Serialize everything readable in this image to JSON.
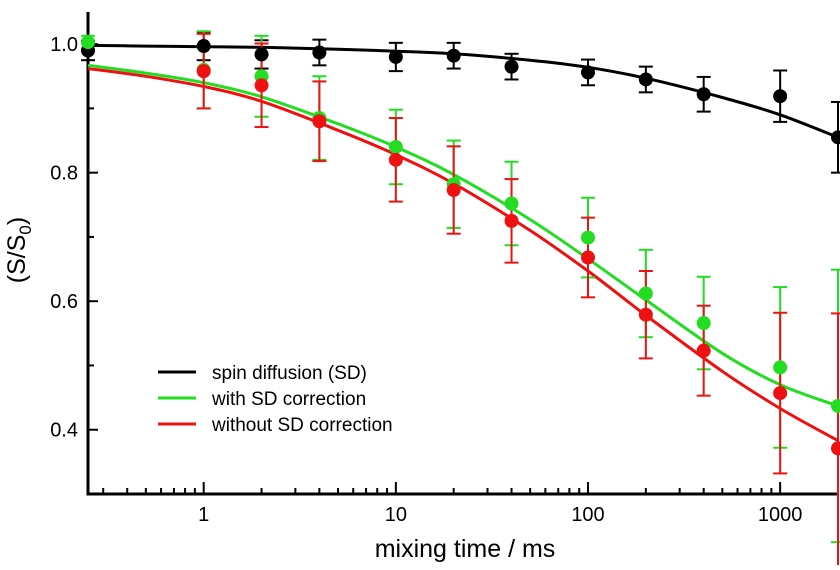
{
  "chart_data": {
    "type": "scatter",
    "title": "",
    "xlabel": "mixing time / ms",
    "ylabel": "(S/S0)",
    "ylabel_main": "(S/S",
    "ylabel_sub": "0",
    "ylabel_close": ")",
    "xscale": "log",
    "xlim": [
      0.25,
      2000
    ],
    "ylim": [
      0.3,
      1.05
    ],
    "xticks": [
      1,
      10,
      100,
      1000
    ],
    "xtick_labels": [
      "1",
      "10",
      "100",
      "1000"
    ],
    "yticks": [
      0.4,
      0.6,
      0.8,
      1.0
    ],
    "ytick_labels": [
      "0.4",
      "0.6",
      "0.8",
      "1.0"
    ],
    "grid": false,
    "legend_position": "lower-left",
    "x": [
      0.25,
      1,
      2,
      4,
      10,
      20,
      40,
      100,
      200,
      400,
      1000,
      2000
    ],
    "series": [
      {
        "name": "spin diffusion (SD)",
        "color": "#000000",
        "points_x": [
          0.25,
          1,
          2,
          4,
          10,
          20,
          40,
          100,
          200,
          400,
          1000,
          2000
        ],
        "values": [
          0.99,
          0.997,
          0.984,
          0.987,
          0.98,
          0.982,
          0.965,
          0.956,
          0.945,
          0.922,
          0.919,
          0.855
        ],
        "errors": [
          0.015,
          0.022,
          0.022,
          0.02,
          0.022,
          0.02,
          0.02,
          0.02,
          0.02,
          0.027,
          0.04,
          0.055
        ],
        "fit_x": [
          0.25,
          0.5,
          1,
          2,
          5,
          10,
          20,
          50,
          100,
          200,
          500,
          1000,
          2000
        ],
        "fit_y": [
          0.998,
          0.997,
          0.996,
          0.995,
          0.992,
          0.989,
          0.985,
          0.975,
          0.964,
          0.947,
          0.917,
          0.89,
          0.855
        ]
      },
      {
        "name": "with SD correction",
        "color": "#22dd22",
        "points_x": [
          0.25,
          1,
          2,
          4,
          10,
          20,
          40,
          100,
          200,
          400,
          1000,
          2000
        ],
        "values": [
          1.003,
          0.96,
          0.95,
          0.885,
          0.84,
          0.782,
          0.752,
          0.699,
          0.612,
          0.566,
          0.497,
          0.437
        ],
        "errors": [
          0.01,
          0.06,
          0.063,
          0.065,
          0.058,
          0.068,
          0.065,
          0.062,
          0.068,
          0.072,
          0.125,
          0.212
        ],
        "fit_x": [
          0.25,
          0.5,
          1,
          2,
          5,
          10,
          20,
          50,
          100,
          200,
          500,
          1000,
          2000
        ],
        "fit_y": [
          0.967,
          0.955,
          0.94,
          0.918,
          0.876,
          0.84,
          0.797,
          0.727,
          0.666,
          0.602,
          0.519,
          0.47,
          0.437
        ]
      },
      {
        "name": "without SD correction",
        "color": "#ee1111",
        "points_x": [
          1,
          2,
          4,
          10,
          20,
          40,
          100,
          200,
          400,
          1000,
          2000
        ],
        "values": [
          0.958,
          0.936,
          0.88,
          0.82,
          0.773,
          0.725,
          0.668,
          0.579,
          0.523,
          0.457,
          0.371
        ],
        "errors": [
          0.058,
          0.065,
          0.062,
          0.065,
          0.068,
          0.065,
          0.062,
          0.068,
          0.07,
          0.125,
          0.21
        ],
        "fit_x": [
          0.25,
          0.5,
          1,
          2,
          5,
          10,
          20,
          50,
          100,
          200,
          500,
          1000,
          2000
        ],
        "fit_y": [
          0.962,
          0.95,
          0.934,
          0.911,
          0.866,
          0.828,
          0.783,
          0.71,
          0.647,
          0.578,
          0.491,
          0.433,
          0.383
        ]
      }
    ]
  }
}
